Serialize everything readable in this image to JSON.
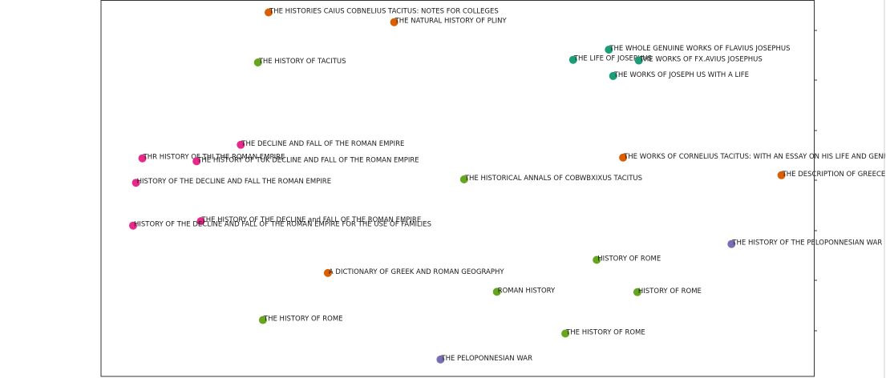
{
  "chart_data": {
    "type": "scatter",
    "title": "",
    "xlabel": "",
    "ylabel": "",
    "xlim": [
      0,
      100
    ],
    "ylim": [
      0,
      100
    ],
    "grid": false,
    "colors": {
      "orange": "#d95f02",
      "teal": "#1b9e77",
      "green": "#66a61e",
      "pink": "#e7298a",
      "purple": "#7570b3"
    },
    "points": [
      {
        "label": "THE HISTORIES CAIUS COBNELIUS TACITUS: NOTES FOR COLLEGES",
        "x": 23.5,
        "y": 96.8,
        "color": "orange"
      },
      {
        "label": "THE NATURAL HISTORY OF PLINY",
        "x": 41.1,
        "y": 94.2,
        "color": "orange"
      },
      {
        "label": "THE WHOLE GENUINE WORKS OF FLAVIUS JOSEPHUS",
        "x": 71.2,
        "y": 86.9,
        "color": "teal"
      },
      {
        "label": "THE LIFE OF JOSEPHUS",
        "x": 66.2,
        "y": 84.2,
        "color": "teal"
      },
      {
        "label": "THE WORKS OF FX.AVIUS JOSEPHUS",
        "x": 75.4,
        "y": 84.0,
        "color": "teal"
      },
      {
        "label": "THE HISTORY OF TACITUS",
        "x": 22.0,
        "y": 83.5,
        "color": "green"
      },
      {
        "label": "THE WORKS OF JOSEPH US WITH A LIFE",
        "x": 71.8,
        "y": 79.9,
        "color": "teal"
      },
      {
        "label": "THE DECLINE AND FALL OF THE ROMAN EMPIRE",
        "x": 19.6,
        "y": 61.6,
        "color": "pink"
      },
      {
        "label": "THR HISTORY OF THI THE ROMAN EMPIRE",
        "x": 5.8,
        "y": 58.0,
        "color": "pink"
      },
      {
        "label": "THE HISTORY OF TUK DECLINE AND FALL OF THE ROMAN EMPIRE",
        "x": 13.4,
        "y": 57.2,
        "color": "pink"
      },
      {
        "label": "THE WORKS OF CORNELIUS TACITUS: WITH AN ESSAY ON HIS LIFE AND GENIUS",
        "x": 73.2,
        "y": 58.2,
        "color": "orange"
      },
      {
        "label": "THE DESCRIPTION OF GREECE",
        "x": 95.4,
        "y": 53.5,
        "color": "orange"
      },
      {
        "label": "THE HISTORICAL ANNALS OF COBWBXIXUS TACITUS",
        "x": 50.9,
        "y": 52.4,
        "color": "green"
      },
      {
        "label": "HISTORY OF THE DECLINE AND FALL THE ROMAN EMPIRE",
        "x": 4.9,
        "y": 51.5,
        "color": "pink"
      },
      {
        "label": "THE HISTORY OF THE DECLINE and FALL OF THE ROMAN EMPIRE",
        "x": 14.0,
        "y": 41.3,
        "color": "pink"
      },
      {
        "label": "HISTORY OF THE DECLINE AND FALL OF THE ROMAN EMPIRE FOR THE USE OF FAMILIES",
        "x": 4.5,
        "y": 40.1,
        "color": "pink"
      },
      {
        "label": "THE HISTORY OF THE PELOPONNESIAN WAR",
        "x": 88.4,
        "y": 35.2,
        "color": "purple"
      },
      {
        "label": "HISTORY OF ROME",
        "x": 69.5,
        "y": 31.0,
        "color": "green"
      },
      {
        "label": "A DICTIONARY OF GREEK AND ROMAN GEOGRAPHY",
        "x": 31.8,
        "y": 27.5,
        "color": "orange"
      },
      {
        "label": "ROMAN HISTORY",
        "x": 55.5,
        "y": 22.5,
        "color": "green"
      },
      {
        "label": "HISTORY OF ROME",
        "x": 75.2,
        "y": 22.4,
        "color": "green"
      },
      {
        "label": "THE HISTORY OF ROME",
        "x": 22.7,
        "y": 15.0,
        "color": "green"
      },
      {
        "label": "THE HISTORY OF ROME",
        "x": 65.1,
        "y": 11.4,
        "color": "green"
      },
      {
        "label": "THE PELOPONNESIAN WAR",
        "x": 47.6,
        "y": 4.5,
        "color": "purple"
      }
    ]
  }
}
